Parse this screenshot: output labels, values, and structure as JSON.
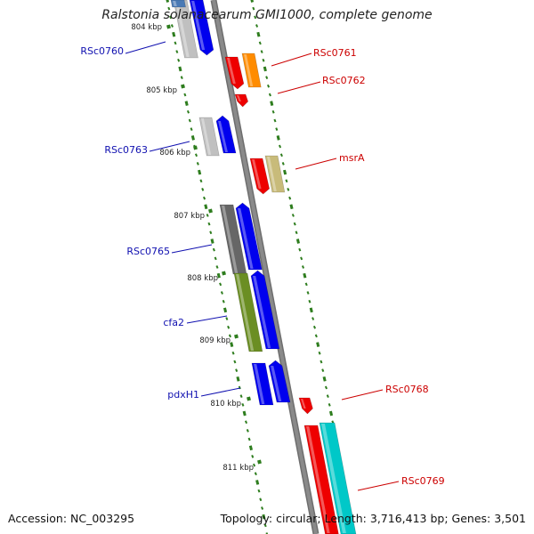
{
  "title": "Ralstonia solanacearum GMI1000, complete genome",
  "footer": {
    "accession": "Accession: NC_003295",
    "summary": "Topology: circular; Length: 3,716,413 bp; Genes: 3,501"
  },
  "colors": {
    "backbone": "#8a8a8a",
    "tick_marks": "#2e7d1e",
    "left_labels": "#1010b0",
    "right_labels": "#cc0000"
  },
  "ruler": {
    "unit": "kbp",
    "ticks": [
      "804 kbp",
      "805 kbp",
      "806 kbp",
      "807 kbp",
      "808 kbp",
      "809 kbp",
      "810 kbp",
      "811 kbp"
    ]
  },
  "features": [
    {
      "label": "RSc0760",
      "side": "left",
      "color": "#c0c0c0",
      "color2": "#0000ee"
    },
    {
      "label": "RSc0761",
      "side": "right",
      "color": "#ee0000",
      "color2": "#ff8c00"
    },
    {
      "label": "RSc0762",
      "side": "right",
      "color": "#ee0000"
    },
    {
      "label": "RSc0763",
      "side": "left",
      "color": "#c0c0c0",
      "color2": "#0000ee"
    },
    {
      "label": "msrA",
      "side": "right",
      "color": "#ee0000",
      "color2": "#c8bb7a"
    },
    {
      "label": "RSc0765",
      "side": "left",
      "color": "#666666",
      "color2": "#0000ee"
    },
    {
      "label": "cfa2",
      "side": "left",
      "color": "#6b8e23",
      "color2": "#0000ee"
    },
    {
      "label": "pdxH1",
      "side": "left",
      "color": "#0000ee",
      "color2": "#0000ee"
    },
    {
      "label": "RSc0768",
      "side": "right",
      "color": "#ee0000"
    },
    {
      "label": "RSc0769",
      "side": "right",
      "color": "#ee0000",
      "color2": "#00c8c8"
    }
  ]
}
